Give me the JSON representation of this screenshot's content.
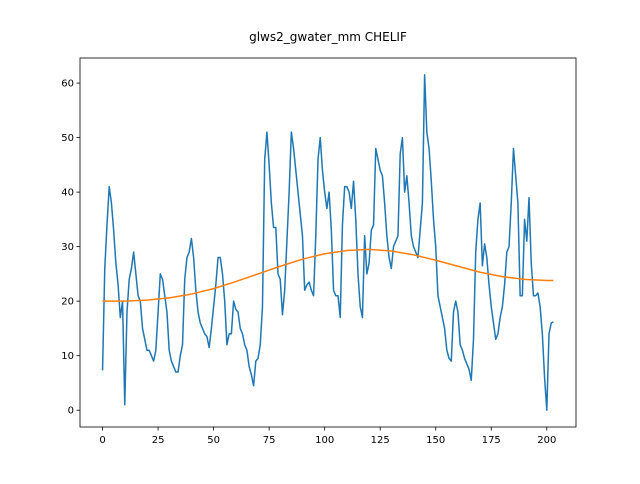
{
  "chart_data": {
    "type": "line",
    "title": "glws2_gwater_mm CHELIF",
    "xlim": [
      -10.15,
      213.15
    ],
    "ylim": [
      -3.08,
      64.6
    ],
    "xticks": [
      0,
      25,
      50,
      75,
      100,
      125,
      150,
      175,
      200
    ],
    "yticks": [
      0,
      10,
      20,
      30,
      40,
      50,
      60
    ],
    "series": [
      {
        "color": "#1f77b4",
        "x": [
          0,
          1,
          2,
          3,
          4,
          5,
          6,
          7,
          8,
          9,
          10,
          11,
          12,
          13,
          14,
          15,
          16,
          17,
          18,
          19,
          20,
          21,
          22,
          23,
          24,
          25,
          26,
          27,
          28,
          29,
          30,
          31,
          32,
          33,
          34,
          35,
          36,
          37,
          38,
          39,
          40,
          41,
          42,
          43,
          44,
          45,
          46,
          47,
          48,
          49,
          50,
          51,
          52,
          53,
          54,
          55,
          56,
          57,
          58,
          59,
          60,
          61,
          62,
          63,
          64,
          65,
          66,
          67,
          68,
          69,
          70,
          71,
          72,
          73,
          74,
          75,
          76,
          77,
          78,
          79,
          80,
          81,
          82,
          83,
          84,
          85,
          86,
          87,
          88,
          89,
          90,
          91,
          92,
          93,
          94,
          95,
          96,
          97,
          98,
          99,
          100,
          101,
          102,
          103,
          104,
          105,
          106,
          107,
          108,
          109,
          110,
          111,
          112,
          113,
          114,
          115,
          116,
          117,
          118,
          119,
          120,
          121,
          122,
          123,
          124,
          125,
          126,
          127,
          128,
          129,
          130,
          131,
          132,
          133,
          134,
          135,
          136,
          137,
          138,
          139,
          140,
          141,
          142,
          143,
          144,
          145,
          146,
          147,
          148,
          149,
          150,
          151,
          152,
          153,
          154,
          155,
          156,
          157,
          158,
          159,
          160,
          161,
          162,
          163,
          164,
          165,
          166,
          167,
          168,
          169,
          170,
          171,
          172,
          173,
          174,
          175,
          176,
          177,
          178,
          179,
          180,
          181,
          182,
          183,
          184,
          185,
          186,
          187,
          188,
          189,
          190,
          191,
          192,
          193,
          194,
          195,
          196,
          197,
          198,
          199,
          200,
          201,
          202,
          203
        ],
        "values": [
          7.3,
          26,
          34,
          41,
          38,
          33,
          27,
          23,
          17,
          20,
          1,
          18,
          24,
          26,
          29,
          25,
          21,
          20,
          15,
          13,
          11,
          11,
          10,
          9,
          11,
          18,
          25,
          24,
          21,
          18,
          11,
          9,
          8,
          7,
          7,
          10,
          12,
          24,
          28,
          29,
          31.5,
          28,
          22,
          18,
          16,
          15,
          14,
          13.5,
          11.5,
          15,
          19,
          23,
          28,
          28,
          25,
          20,
          12,
          14,
          14,
          20,
          18.5,
          18,
          15,
          14,
          12,
          11,
          8,
          6.5,
          4.5,
          9,
          9.5,
          12,
          19,
          46,
          51,
          45,
          38,
          33.5,
          33.5,
          25,
          24,
          17.5,
          22,
          31,
          40,
          51,
          48,
          44,
          40,
          36,
          32,
          22,
          23,
          23.5,
          22,
          21,
          32,
          46,
          50,
          44,
          40,
          37,
          40,
          33,
          22,
          21,
          21,
          17,
          34,
          41,
          41,
          40,
          37,
          42,
          35,
          25,
          19,
          17,
          32,
          25,
          27,
          33,
          34,
          48,
          46,
          44,
          43,
          38,
          32,
          28,
          26,
          30,
          31,
          32,
          47,
          50,
          40,
          43,
          38,
          32,
          30,
          29,
          28,
          33,
          38,
          61.5,
          51,
          48,
          42,
          35,
          30,
          21,
          19,
          17,
          15,
          11,
          9.5,
          9,
          18,
          20,
          18,
          12,
          11,
          9.5,
          8.5,
          7.5,
          5.5,
          13,
          29,
          35,
          38,
          26.5,
          30.5,
          28,
          23,
          19,
          16,
          13,
          14,
          17,
          19,
          23,
          29,
          30,
          38,
          48,
          43,
          38,
          21,
          21,
          35,
          31,
          39,
          27,
          21,
          21,
          21.5,
          19,
          14,
          6,
          0,
          14,
          16,
          16.2
        ]
      },
      {
        "color": "#ff7f0e",
        "x": [
          0,
          10,
          20,
          30,
          40,
          50,
          60,
          70,
          80,
          90,
          100,
          110,
          120,
          130,
          140,
          150,
          160,
          170,
          180,
          190,
          200,
          203
        ],
        "values": [
          20,
          20,
          20.2,
          20.6,
          21.3,
          22.3,
          23.6,
          25,
          26.4,
          27.7,
          28.7,
          29.3,
          29.5,
          29.2,
          28.5,
          27.5,
          26.4,
          25.3,
          24.5,
          24,
          23.8,
          23.8
        ]
      }
    ]
  }
}
